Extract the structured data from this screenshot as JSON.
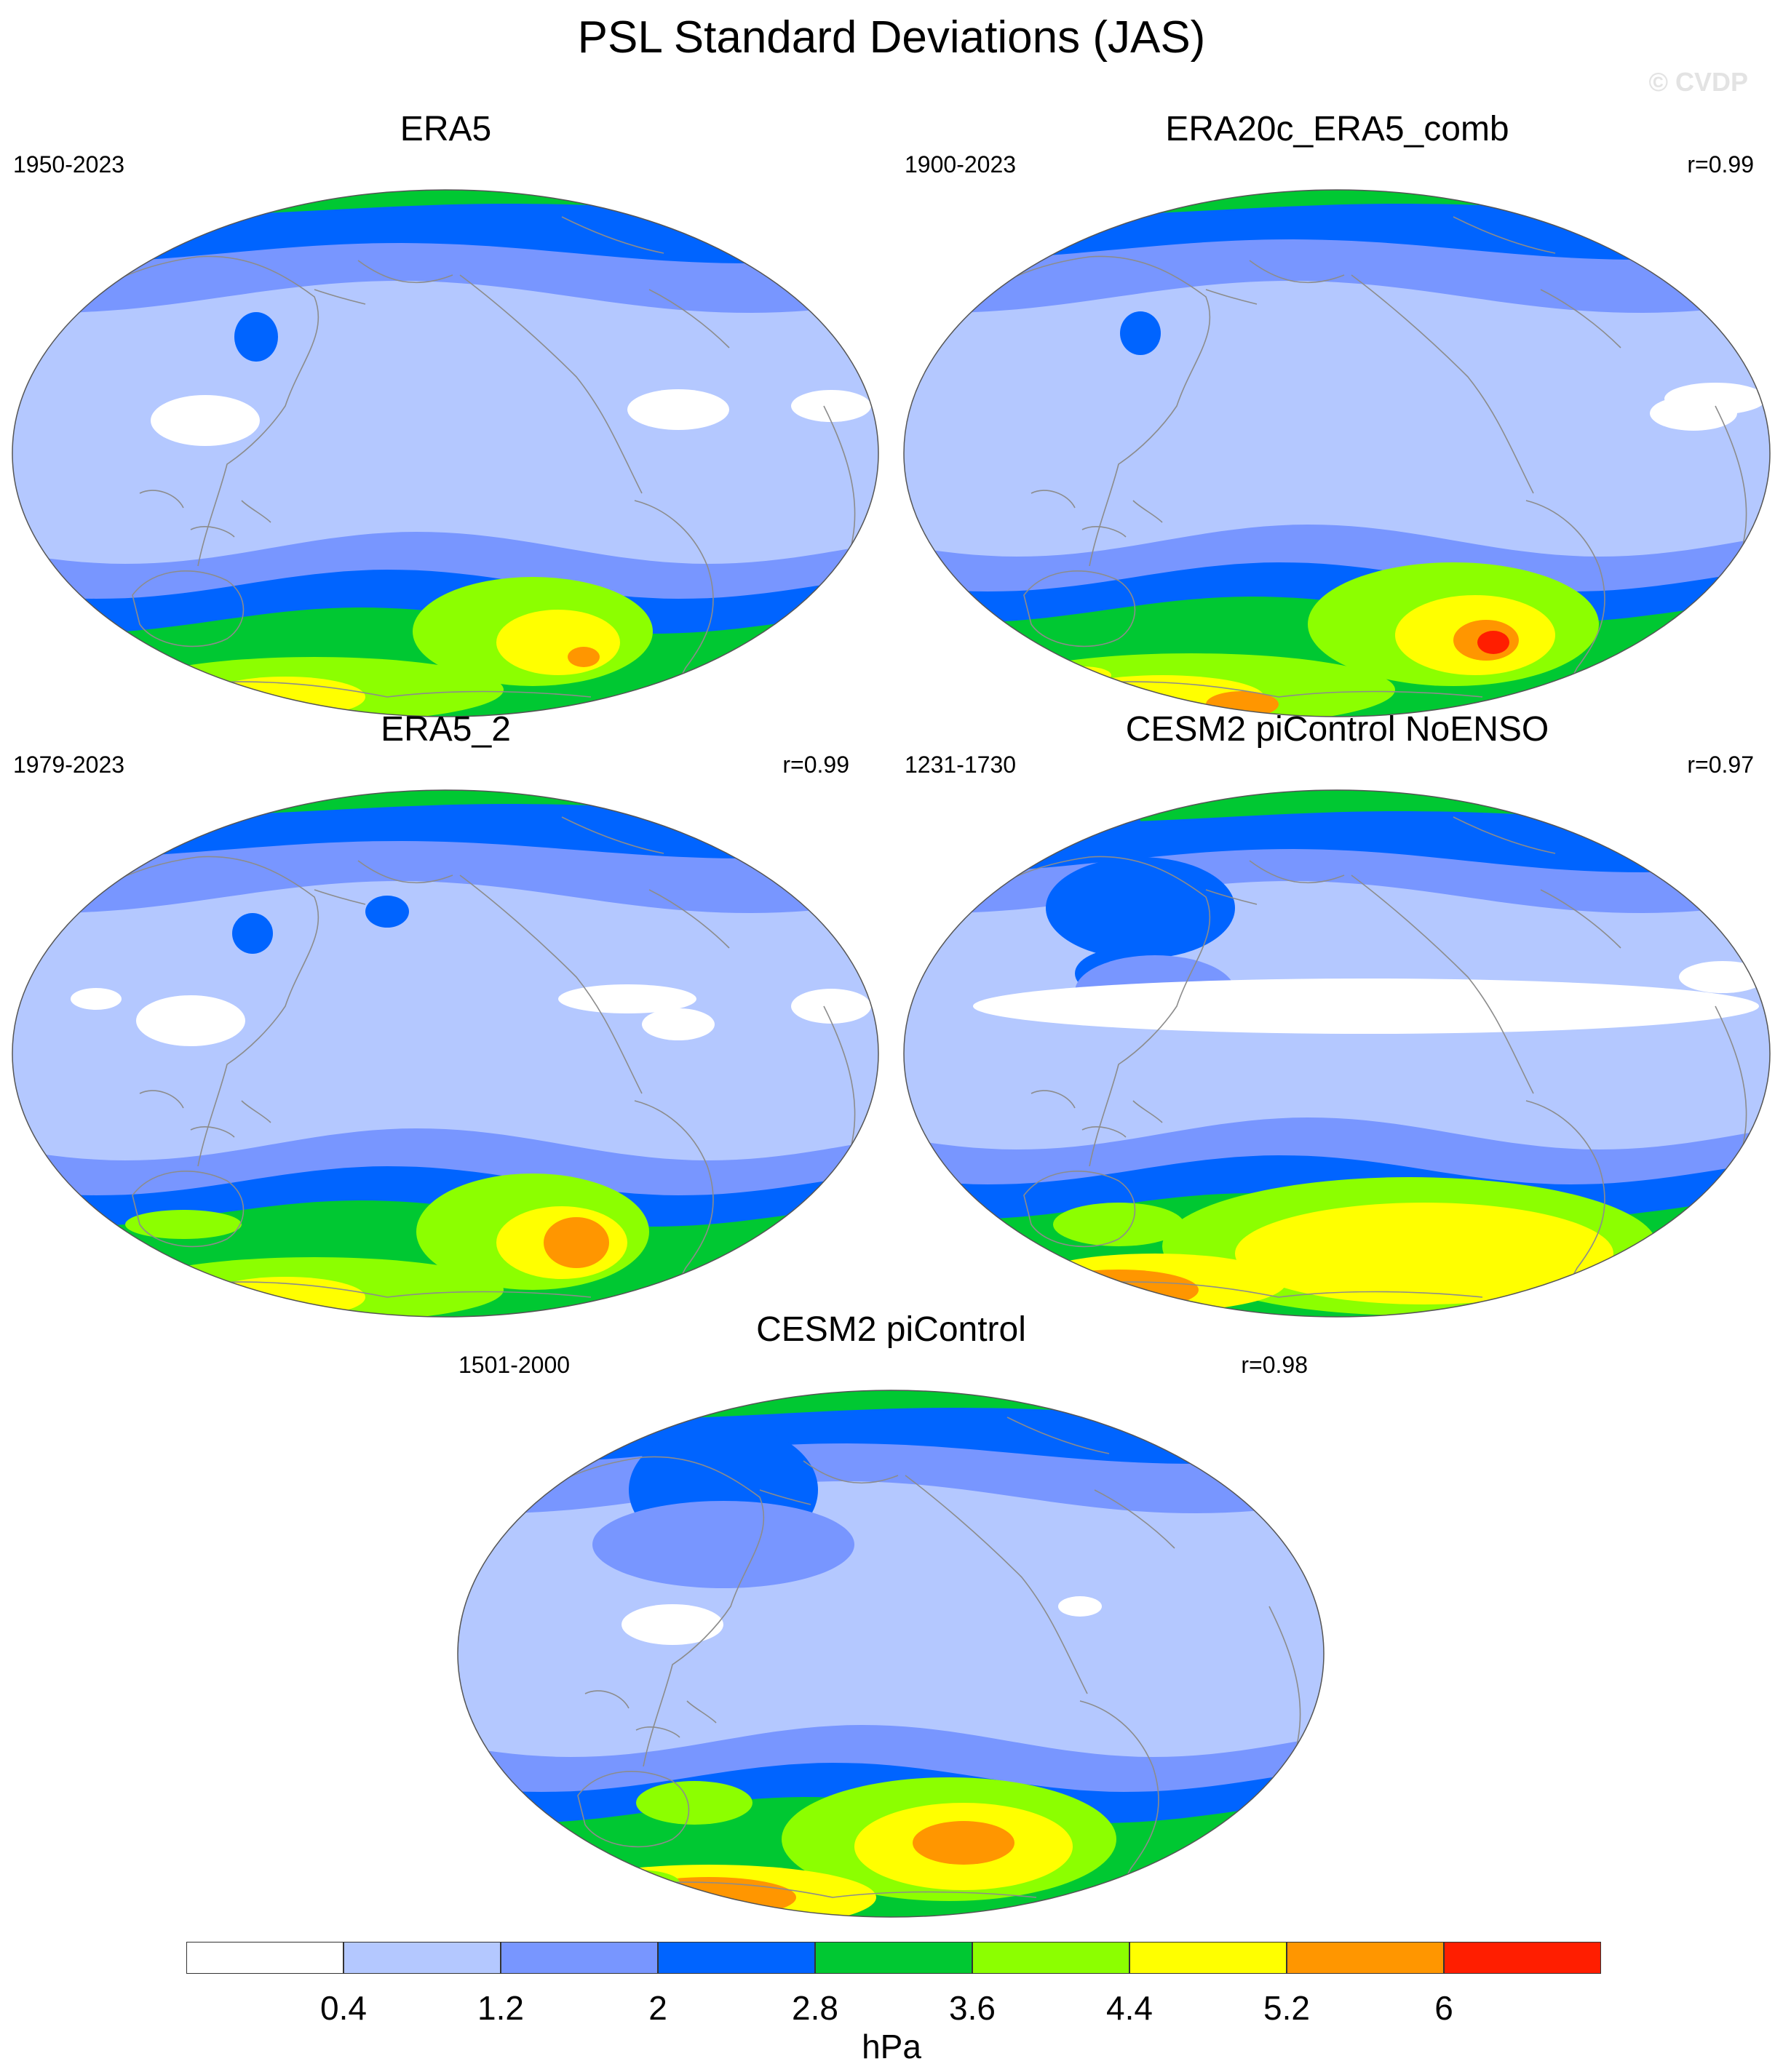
{
  "title": "PSL Standard Deviations (JAS)",
  "watermark": "© CVDP",
  "panels": [
    {
      "title": "ERA5",
      "years": "1950-2023",
      "corr": ""
    },
    {
      "title": "ERA20c_ERA5_comb",
      "years": "1900-2023",
      "corr": "r=0.99"
    },
    {
      "title": "ERA5_2",
      "years": "1979-2023",
      "corr": "r=0.99"
    },
    {
      "title": "CESM2 piControl NoENSO",
      "years": "1231-1730",
      "corr": "r=0.97"
    },
    {
      "title": "CESM2 piControl",
      "years": "1501-2000",
      "corr": "r=0.98"
    }
  ],
  "colorbar": {
    "unit": "hPa",
    "labels": [
      "0.4",
      "1.2",
      "2",
      "2.8",
      "3.6",
      "4.4",
      "5.2",
      "6"
    ],
    "colors": [
      "#ffffff",
      "#b4c8ff",
      "#7896ff",
      "#0064ff",
      "#00c832",
      "#8cff00",
      "#ffff00",
      "#ff9600",
      "#ff1e00"
    ]
  },
  "colors": {
    "ocean_base": "#b4c8ff",
    "land_outline": "#8c8c8c"
  }
}
